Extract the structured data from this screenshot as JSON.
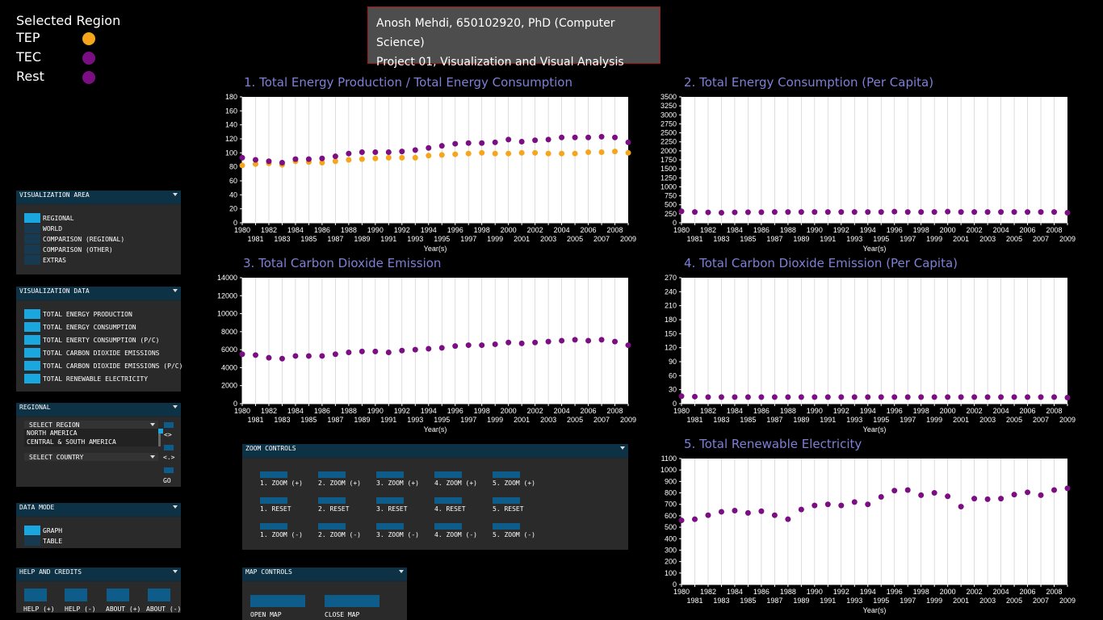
{
  "legend": {
    "title": "Selected Region",
    "items": [
      {
        "label": "TEP",
        "color": "#f7a51c"
      },
      {
        "label": "TEC",
        "color": "#7b0e82"
      },
      {
        "label": "Rest",
        "color": "#7b0e82"
      }
    ]
  },
  "header": {
    "line1": "Anosh Mehdi, 650102920, PhD (Computer Science)",
    "line2": "Project 01, Visualization and Visual Analysis"
  },
  "panels": {
    "vis_area": {
      "title": "VISUALIZATION AREA",
      "options": [
        {
          "label": "REGIONAL",
          "selected": true
        },
        {
          "label": "WORLD",
          "selected": false
        },
        {
          "label": "COMPARISON (REGIONAL)",
          "selected": false
        },
        {
          "label": "COMPARISON (OTHER)",
          "selected": false
        },
        {
          "label": "EXTRAS",
          "selected": false
        }
      ]
    },
    "vis_data": {
      "title": "VISUALIZATION DATA",
      "options": [
        {
          "label": "TOTAL ENERGY PRODUCTION",
          "selected": true
        },
        {
          "label": "TOTAL ENERGY CONSUMPTION",
          "selected": true
        },
        {
          "label": "TOTAL ENERTY CONSUMPTION (P/C)",
          "selected": true
        },
        {
          "label": "TOTAL CARBON DIOXIDE EMISSIONS",
          "selected": true
        },
        {
          "label": "TOTAL CARBON DIOXIDE EMISSIONS (P/C)",
          "selected": true
        },
        {
          "label": "TOTAL RENEWABLE ELECTRICITY",
          "selected": true
        }
      ]
    },
    "regional": {
      "title": "REGIONAL",
      "select_region": "SELECT REGION",
      "region_options": [
        "NORTH AMERICA",
        "CENTRAL & SOUTH AMERICA"
      ],
      "select_country": "SELECT COUNTRY",
      "swap1": "<>",
      "swap2": "<.>",
      "go": "GO"
    },
    "data_mode": {
      "title": "DATA MODE",
      "options": [
        {
          "label": "GRAPH",
          "selected": true
        },
        {
          "label": "TABLE",
          "selected": false
        }
      ]
    },
    "help": {
      "title": "HELP AND CREDITS",
      "buttons": [
        "HELP (+)",
        "HELP (-)",
        "ABOUT (+)",
        "ABOUT (-)"
      ]
    },
    "zoom": {
      "title": "ZOOM CONTROLS",
      "rows": [
        [
          "1. ZOOM (+)",
          "2. ZOOM (+)",
          "3. ZOOM (+)",
          "4. ZOOM (+)",
          "5. ZOOM (+)"
        ],
        [
          "1. RESET",
          "2. RESET",
          "3. RESET",
          "4. RESET",
          "5. RESET"
        ],
        [
          "1. ZOOM (-)",
          "2. ZOOM (-)",
          "3. ZOOM (-)",
          "4. ZOOM (-)",
          "5. ZOOM (-)"
        ]
      ]
    },
    "map": {
      "title": "MAP CONTROLS",
      "buttons": [
        "OPEN MAP",
        "CLOSE MAP"
      ]
    }
  },
  "chart_data": [
    {
      "type": "scatter",
      "title": "1. Total Energy Production / Total Energy Consumption",
      "xlabel": "Year(s)",
      "x": [
        1980,
        1981,
        1982,
        1983,
        1984,
        1985,
        1986,
        1987,
        1988,
        1989,
        1990,
        1991,
        1992,
        1993,
        1994,
        1995,
        1996,
        1997,
        1998,
        1999,
        2000,
        2001,
        2002,
        2003,
        2004,
        2005,
        2006,
        2007,
        2008,
        2009
      ],
      "ylim": [
        0,
        180
      ],
      "yticks": [
        0,
        20,
        40,
        60,
        80,
        100,
        120,
        140,
        160,
        180
      ],
      "series": [
        {
          "name": "TEP",
          "color": "#f7a51c",
          "values": [
            82,
            84,
            85,
            83,
            88,
            87,
            86,
            88,
            90,
            91,
            92,
            93,
            93,
            93,
            96,
            97,
            98,
            99,
            100,
            99,
            99,
            100,
            100,
            99,
            99,
            99,
            101,
            101,
            102,
            100
          ]
        },
        {
          "name": "TEC",
          "color": "#7b0e82",
          "values": [
            93,
            90,
            88,
            86,
            91,
            91,
            92,
            95,
            99,
            101,
            101,
            101,
            102,
            104,
            107,
            110,
            113,
            114,
            114,
            115,
            119,
            116,
            118,
            119,
            122,
            122,
            122,
            123,
            122,
            115
          ]
        }
      ]
    },
    {
      "type": "scatter",
      "title": "2. Total Energy Consumption (Per Capita)",
      "xlabel": "Year(s)",
      "x": [
        1980,
        1981,
        1982,
        1983,
        1984,
        1985,
        1986,
        1987,
        1988,
        1989,
        1990,
        1991,
        1992,
        1993,
        1994,
        1995,
        1996,
        1997,
        1998,
        1999,
        2000,
        2001,
        2002,
        2003,
        2004,
        2005,
        2006,
        2007,
        2008,
        2009
      ],
      "ylim": [
        0,
        3500
      ],
      "yticks": [
        0,
        250,
        500,
        750,
        1000,
        1250,
        1500,
        1750,
        2000,
        2250,
        2500,
        2750,
        3000,
        3250,
        3500
      ],
      "series": [
        {
          "name": "",
          "color": "#7b0e82",
          "values": [
            320,
            300,
            290,
            280,
            290,
            295,
            295,
            300,
            300,
            300,
            300,
            300,
            300,
            300,
            300,
            300,
            310,
            300,
            300,
            300,
            310,
            300,
            300,
            300,
            300,
            300,
            300,
            300,
            300,
            280
          ]
        }
      ]
    },
    {
      "type": "scatter",
      "title": "3. Total Carbon Dioxide Emission",
      "xlabel": "Year(s)",
      "x": [
        1980,
        1981,
        1982,
        1983,
        1984,
        1985,
        1986,
        1987,
        1988,
        1989,
        1990,
        1991,
        1992,
        1993,
        1994,
        1995,
        1996,
        1997,
        1998,
        1999,
        2000,
        2001,
        2002,
        2003,
        2004,
        2005,
        2006,
        2007,
        2008,
        2009
      ],
      "ylim": [
        0,
        14000
      ],
      "yticks": [
        0,
        2000,
        4000,
        6000,
        8000,
        10000,
        12000,
        14000
      ],
      "series": [
        {
          "name": "",
          "color": "#7b0e82",
          "values": [
            5500,
            5400,
            5100,
            5000,
            5300,
            5300,
            5300,
            5500,
            5700,
            5800,
            5800,
            5700,
            5900,
            6000,
            6100,
            6200,
            6400,
            6500,
            6500,
            6600,
            6800,
            6700,
            6800,
            6900,
            7000,
            7100,
            7000,
            7100,
            6900,
            6500
          ]
        }
      ]
    },
    {
      "type": "scatter",
      "title": "4. Total Carbon Dioxide Emission (Per Capita)",
      "xlabel": "Year(s)",
      "x": [
        1980,
        1981,
        1982,
        1983,
        1984,
        1985,
        1986,
        1987,
        1988,
        1989,
        1990,
        1991,
        1992,
        1993,
        1994,
        1995,
        1996,
        1997,
        1998,
        1999,
        2000,
        2001,
        2002,
        2003,
        2004,
        2005,
        2006,
        2007,
        2008,
        2009
      ],
      "ylim": [
        0,
        270
      ],
      "yticks": [
        0,
        30,
        60,
        90,
        120,
        150,
        180,
        210,
        240,
        270
      ],
      "series": [
        {
          "name": "",
          "color": "#7b0e82",
          "values": [
            16,
            15,
            14,
            14,
            14,
            14,
            14,
            14,
            14,
            14,
            14,
            14,
            14,
            14,
            14,
            14,
            14,
            14,
            14,
            14,
            14,
            14,
            14,
            14,
            14,
            14,
            14,
            14,
            14,
            13
          ]
        }
      ]
    },
    {
      "type": "scatter",
      "title": "5. Total Renewable Electricity",
      "xlabel": "Year(s)",
      "x": [
        1980,
        1981,
        1982,
        1983,
        1984,
        1985,
        1986,
        1987,
        1988,
        1989,
        1990,
        1991,
        1992,
        1993,
        1994,
        1995,
        1996,
        1997,
        1998,
        1999,
        2000,
        2001,
        2002,
        2003,
        2004,
        2005,
        2006,
        2007,
        2008,
        2009
      ],
      "ylim": [
        0,
        1100
      ],
      "yticks": [
        0,
        100,
        200,
        300,
        400,
        500,
        600,
        700,
        800,
        900,
        1000,
        1100
      ],
      "series": [
        {
          "name": "",
          "color": "#7b0e82",
          "values": [
            560,
            570,
            605,
            635,
            645,
            625,
            640,
            605,
            570,
            655,
            690,
            700,
            690,
            720,
            700,
            765,
            820,
            825,
            780,
            800,
            770,
            680,
            750,
            745,
            750,
            785,
            805,
            780,
            825,
            840
          ]
        }
      ]
    }
  ]
}
